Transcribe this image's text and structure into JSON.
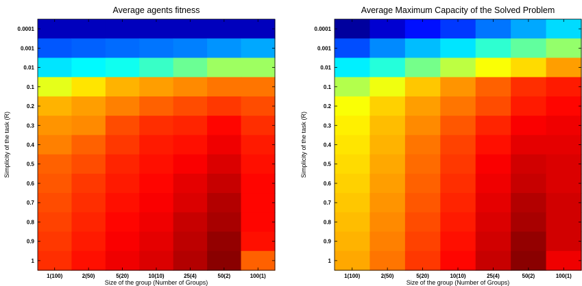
{
  "chart_data": [
    {
      "type": "heatmap",
      "title": "Average agents fitness",
      "xlabel": "Size of the group (Number of Groups)",
      "ylabel": "Simplicity of the task (R)",
      "x": [
        "1(100)",
        "2(50)",
        "5(20)",
        "10(10)",
        "25(4)",
        "50(2)",
        "100(1)"
      ],
      "y": [
        "0.0001",
        "0.001",
        "0.01",
        "0.1",
        "0.2",
        "0.3",
        "0.4",
        "0.5",
        "0.6",
        "0.7",
        "0.8",
        "0.9",
        "1"
      ],
      "colormap": "jet",
      "grid": false,
      "values": [
        [
          0.06,
          0.06,
          0.06,
          0.06,
          0.06,
          0.06,
          0.06
        ],
        [
          0.21,
          0.22,
          0.23,
          0.24,
          0.25,
          0.27,
          0.29
        ],
        [
          0.35,
          0.37,
          0.39,
          0.43,
          0.48,
          0.53,
          0.53
        ],
        [
          0.6,
          0.65,
          0.7,
          0.72,
          0.74,
          0.76,
          0.76
        ],
        [
          0.7,
          0.72,
          0.75,
          0.78,
          0.8,
          0.82,
          0.8
        ],
        [
          0.73,
          0.74,
          0.8,
          0.83,
          0.84,
          0.87,
          0.83
        ],
        [
          0.75,
          0.78,
          0.82,
          0.85,
          0.86,
          0.89,
          0.85
        ],
        [
          0.78,
          0.8,
          0.84,
          0.86,
          0.88,
          0.91,
          0.86
        ],
        [
          0.79,
          0.82,
          0.85,
          0.87,
          0.9,
          0.93,
          0.87
        ],
        [
          0.8,
          0.83,
          0.86,
          0.88,
          0.91,
          0.95,
          0.87
        ],
        [
          0.81,
          0.84,
          0.87,
          0.89,
          0.93,
          0.96,
          0.87
        ],
        [
          0.82,
          0.85,
          0.88,
          0.9,
          0.94,
          0.98,
          0.86
        ],
        [
          0.83,
          0.86,
          0.89,
          0.91,
          0.95,
          0.99,
          0.78
        ]
      ]
    },
    {
      "type": "heatmap",
      "title": "Average Maximum Capacity of the Solved Problem",
      "xlabel": "Size of the group (Number of Groups)",
      "ylabel": "Simplicity of the task (R)",
      "x": [
        "1(100)",
        "2(50)",
        "5(20)",
        "10(10)",
        "25(4)",
        "50(2)",
        "100(1)"
      ],
      "y": [
        "0.0001",
        "0.001",
        "0.01",
        "0.1",
        "0.2",
        "0.3",
        "0.4",
        "0.5",
        "0.6",
        "0.7",
        "0.8",
        "0.9",
        "1"
      ],
      "colormap": "jet",
      "grid": false,
      "values": [
        [
          0.03,
          0.08,
          0.14,
          0.18,
          0.24,
          0.29,
          0.34
        ],
        [
          0.2,
          0.26,
          0.31,
          0.35,
          0.42,
          0.47,
          0.52
        ],
        [
          0.36,
          0.41,
          0.49,
          0.56,
          0.62,
          0.66,
          0.72
        ],
        [
          0.55,
          0.61,
          0.68,
          0.73,
          0.78,
          0.83,
          0.85
        ],
        [
          0.62,
          0.67,
          0.72,
          0.76,
          0.8,
          0.85,
          0.87
        ],
        [
          0.64,
          0.69,
          0.74,
          0.79,
          0.84,
          0.88,
          0.89
        ],
        [
          0.65,
          0.7,
          0.76,
          0.81,
          0.86,
          0.9,
          0.9
        ],
        [
          0.66,
          0.71,
          0.77,
          0.82,
          0.88,
          0.92,
          0.91
        ],
        [
          0.67,
          0.72,
          0.78,
          0.83,
          0.89,
          0.93,
          0.91
        ],
        [
          0.68,
          0.73,
          0.79,
          0.84,
          0.9,
          0.95,
          0.92
        ],
        [
          0.69,
          0.74,
          0.8,
          0.85,
          0.91,
          0.96,
          0.92
        ],
        [
          0.7,
          0.75,
          0.81,
          0.86,
          0.92,
          0.98,
          0.92
        ],
        [
          0.71,
          0.76,
          0.82,
          0.87,
          0.93,
          0.99,
          0.89
        ]
      ]
    }
  ]
}
